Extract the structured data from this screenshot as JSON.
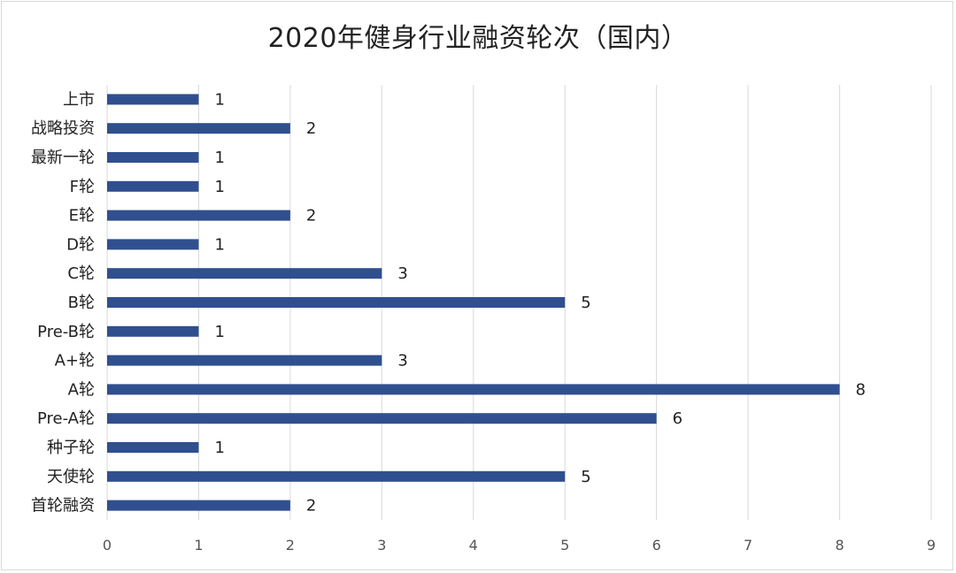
{
  "chart_data": {
    "type": "bar",
    "orientation": "horizontal",
    "title": "2020年健身行业融资轮次（国内）",
    "categories": [
      "上市",
      "战略投资",
      "最新一轮",
      "F轮",
      "E轮",
      "D轮",
      "C轮",
      "B轮",
      "Pre-B轮",
      "A+轮",
      "A轮",
      "Pre-A轮",
      "种子轮",
      "天使轮",
      "首轮融资"
    ],
    "values": [
      1,
      2,
      1,
      1,
      2,
      1,
      3,
      5,
      1,
      3,
      8,
      6,
      1,
      5,
      2
    ],
    "xlim": [
      0,
      9
    ],
    "xticks": [
      0,
      1,
      2,
      3,
      4,
      5,
      6,
      7,
      8,
      9
    ],
    "grid": "vertical",
    "legend": "none",
    "colors": {
      "bar": "#2f4f8f",
      "grid": "#d9d9d9"
    }
  }
}
